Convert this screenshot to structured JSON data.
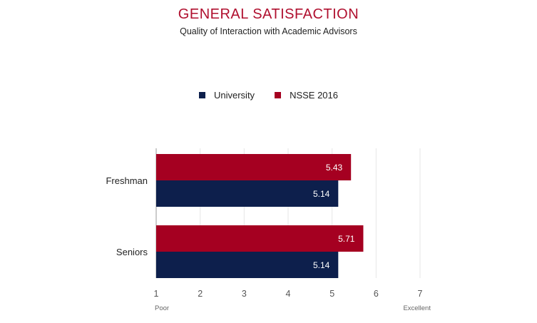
{
  "colors": {
    "university": "#0d1f4c",
    "nsse": "#a50021",
    "title": "#b0102f",
    "grid": "#e6e6e6"
  },
  "chart_data": {
    "type": "bar",
    "orientation": "horizontal",
    "title": "GENERAL SATISFACTION",
    "subtitle": "Quality of Interaction with Academic Advisors",
    "categories": [
      "Freshman",
      "Seniors"
    ],
    "series": [
      {
        "name": "NSSE 2016",
        "values": [
          5.43,
          5.71
        ]
      },
      {
        "name": "University",
        "values": [
          5.14,
          5.14
        ]
      }
    ],
    "legend": [
      "University",
      "NSSE 2016"
    ],
    "xlim": [
      1,
      7
    ],
    "xticks": [
      "1",
      "2",
      "3",
      "4",
      "5",
      "6",
      "7"
    ],
    "scale_low_label": "Poor",
    "scale_high_label": "Excellent",
    "grid": true,
    "legend_position": "top"
  }
}
